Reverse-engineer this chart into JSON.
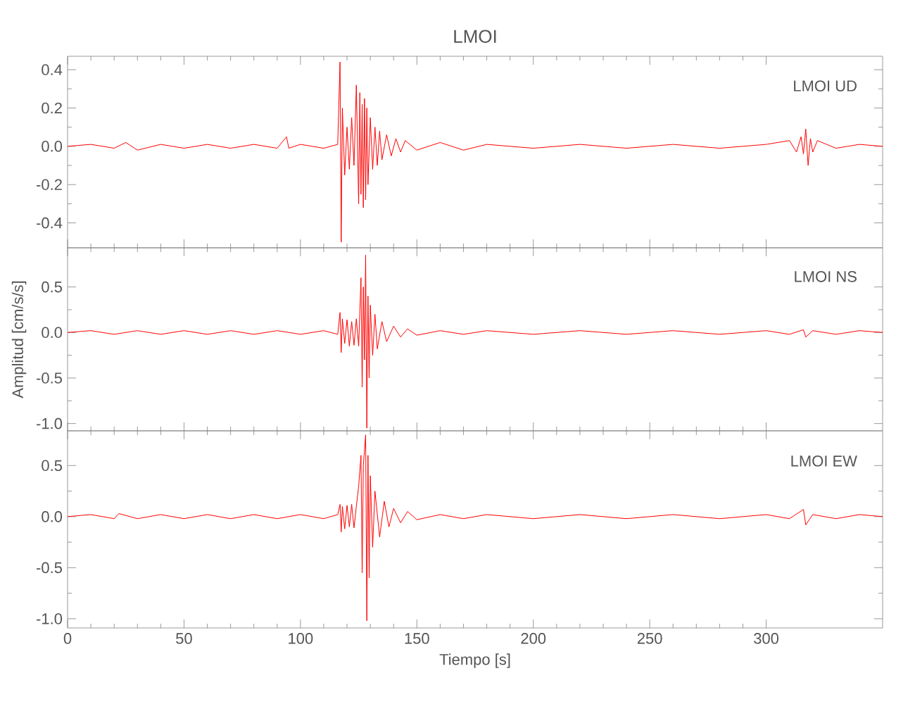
{
  "chart_data": [
    {
      "type": "line",
      "title": "LMOI",
      "annotations": [
        "LMOI   UD"
      ],
      "xlim": [
        0,
        350
      ],
      "xticks": [
        0,
        50,
        100,
        150,
        200,
        250,
        300
      ],
      "ylim": [
        -0.53,
        0.47
      ],
      "yticks": [
        {
          "value": -0.4,
          "label": "-0.4"
        },
        {
          "value": -0.2,
          "label": "-0.2"
        },
        {
          "value": 0,
          "label": "0.0"
        },
        {
          "value": 0.2,
          "label": "0.2"
        },
        {
          "value": 0.4,
          "label": "0.4"
        }
      ],
      "tick_labels": "y",
      "grid": false,
      "series": [
        {
          "color": "#ff0000",
          "x": [
            0,
            10,
            20,
            25,
            30,
            40,
            50,
            60,
            70,
            80,
            90,
            94,
            95,
            100,
            110,
            116,
            117,
            117.5,
            118,
            119,
            120,
            121,
            122,
            123,
            124,
            125,
            125.5,
            126,
            126.5,
            127,
            127.5,
            128,
            128.5,
            129,
            130,
            131,
            132,
            133,
            134,
            135,
            137,
            139,
            141,
            143,
            145,
            150,
            160,
            170,
            180,
            200,
            220,
            240,
            260,
            280,
            300,
            310,
            313,
            315,
            316,
            317,
            318,
            319,
            320,
            322,
            330,
            340,
            350
          ],
          "values": [
            0.0,
            0.01,
            -0.01,
            0.02,
            -0.02,
            0.01,
            -0.01,
            0.01,
            -0.01,
            0.01,
            -0.01,
            0.05,
            -0.01,
            0.01,
            -0.01,
            0.01,
            0.44,
            -0.5,
            0.2,
            -0.15,
            0.1,
            -0.12,
            0.15,
            -0.1,
            0.32,
            -0.3,
            0.28,
            -0.25,
            0.22,
            -0.32,
            0.25,
            -0.28,
            0.2,
            -0.2,
            0.15,
            -0.12,
            0.1,
            -0.1,
            0.08,
            -0.07,
            0.06,
            -0.05,
            0.04,
            -0.03,
            0.03,
            -0.02,
            0.02,
            -0.02,
            0.01,
            -0.01,
            0.01,
            -0.01,
            0.01,
            -0.01,
            0.01,
            0.03,
            -0.03,
            0.05,
            -0.04,
            0.09,
            -0.1,
            0.04,
            -0.03,
            0.03,
            -0.01,
            0.01,
            0.0
          ]
        }
      ]
    },
    {
      "type": "line",
      "ylabel": "Amplitud [cm/s/s]",
      "annotations": [
        "LMOI   NS"
      ],
      "xlim": [
        0,
        350
      ],
      "xticks": [
        0,
        50,
        100,
        150,
        200,
        250,
        300
      ],
      "ylim": [
        -1.08,
        0.93
      ],
      "yticks": [
        {
          "value": -1.0,
          "label": "-1.0"
        },
        {
          "value": -0.5,
          "label": "-0.5"
        },
        {
          "value": 0,
          "label": "0.0"
        },
        {
          "value": 0.5,
          "label": "0.5"
        }
      ],
      "tick_labels": "y",
      "grid": false,
      "series": [
        {
          "color": "#ff0000",
          "x": [
            0,
            10,
            20,
            30,
            40,
            50,
            60,
            70,
            80,
            90,
            100,
            110,
            116,
            117,
            117.5,
            118,
            119,
            120,
            121,
            122,
            123,
            124,
            125,
            126,
            126.5,
            127,
            127.5,
            128,
            128.5,
            129,
            129.5,
            130,
            131,
            132,
            133,
            135,
            137,
            140,
            143,
            146,
            150,
            160,
            170,
            180,
            200,
            220,
            240,
            260,
            280,
            300,
            310,
            316,
            317,
            320,
            330,
            340,
            350
          ],
          "values": [
            0.0,
            0.02,
            -0.02,
            0.02,
            -0.02,
            0.02,
            -0.02,
            0.02,
            -0.02,
            0.02,
            -0.02,
            0.02,
            -0.02,
            0.22,
            -0.22,
            0.15,
            -0.12,
            0.14,
            -0.15,
            0.12,
            -0.14,
            0.15,
            -0.15,
            0.6,
            -0.6,
            0.5,
            -0.3,
            0.85,
            -1.05,
            0.4,
            -0.5,
            0.3,
            -0.25,
            0.2,
            -0.18,
            0.12,
            -0.1,
            0.07,
            -0.05,
            0.04,
            -0.03,
            0.02,
            -0.02,
            0.02,
            -0.02,
            0.02,
            -0.02,
            0.02,
            -0.02,
            0.02,
            -0.02,
            0.03,
            -0.05,
            0.02,
            -0.02,
            0.02,
            0.0
          ]
        }
      ]
    },
    {
      "type": "line",
      "xlabel": "Tiempo [s]",
      "annotations": [
        "LMOI   EW"
      ],
      "xlim": [
        0,
        350
      ],
      "xticks": [
        0,
        50,
        100,
        150,
        200,
        250,
        300
      ],
      "ylim": [
        -1.09,
        0.84
      ],
      "yticks": [
        {
          "value": -1.0,
          "label": "-1.0"
        },
        {
          "value": -0.5,
          "label": "-0.5"
        },
        {
          "value": 0,
          "label": "0.0"
        },
        {
          "value": 0.5,
          "label": "0.5"
        }
      ],
      "grid": false,
      "series": [
        {
          "color": "#ff0000",
          "x": [
            0,
            10,
            20,
            22,
            30,
            40,
            50,
            60,
            70,
            80,
            90,
            100,
            110,
            116,
            117,
            117.5,
            118,
            119,
            120,
            121,
            122,
            123,
            124,
            125,
            126,
            126.5,
            127,
            128,
            128.5,
            129,
            129.5,
            130,
            131,
            132,
            134,
            136,
            138,
            140,
            143,
            146,
            150,
            160,
            170,
            180,
            200,
            220,
            240,
            260,
            280,
            300,
            310,
            316,
            317,
            320,
            330,
            340,
            350
          ],
          "values": [
            0.0,
            0.02,
            -0.02,
            0.03,
            -0.02,
            0.02,
            -0.02,
            0.02,
            -0.02,
            0.02,
            -0.02,
            0.02,
            -0.02,
            0.02,
            0.12,
            -0.15,
            0.1,
            -0.12,
            0.11,
            -0.1,
            0.12,
            -0.11,
            0.1,
            0.3,
            0.6,
            -0.55,
            0.5,
            0.8,
            -1.02,
            0.6,
            -0.6,
            0.4,
            -0.3,
            0.25,
            -0.2,
            0.15,
            -0.1,
            0.08,
            -0.06,
            0.05,
            -0.03,
            0.02,
            -0.02,
            0.02,
            -0.02,
            0.02,
            -0.02,
            0.02,
            -0.02,
            0.02,
            -0.02,
            0.07,
            -0.08,
            0.02,
            -0.02,
            0.02,
            0.0
          ]
        }
      ]
    }
  ]
}
